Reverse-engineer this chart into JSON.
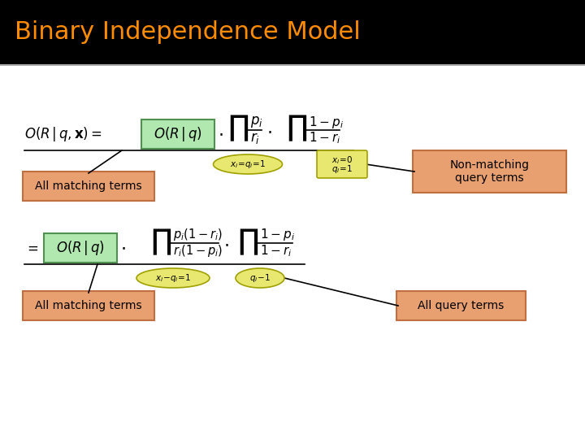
{
  "title": "Binary Independence Model",
  "title_color": "#FF8C00",
  "title_fontsize": 22,
  "bg_color": "#000000",
  "content_bg": "#FFFFFF",
  "label_all_matching": "All matching terms",
  "label_non_matching": "Non-matching\nquery terms",
  "label_all_matching2": "All matching terms",
  "label_all_query": "All query terms",
  "box_orange": "#E8A070",
  "box_orange_edge": "#C07040",
  "box_green_light": "#B0E8B0",
  "box_green_edge": "#509050",
  "ellipse_yellow": "#E8E870",
  "ellipse_yellow_edge": "#A0A000",
  "sep_color": "#AAAAAA",
  "title_bar_height": 80
}
